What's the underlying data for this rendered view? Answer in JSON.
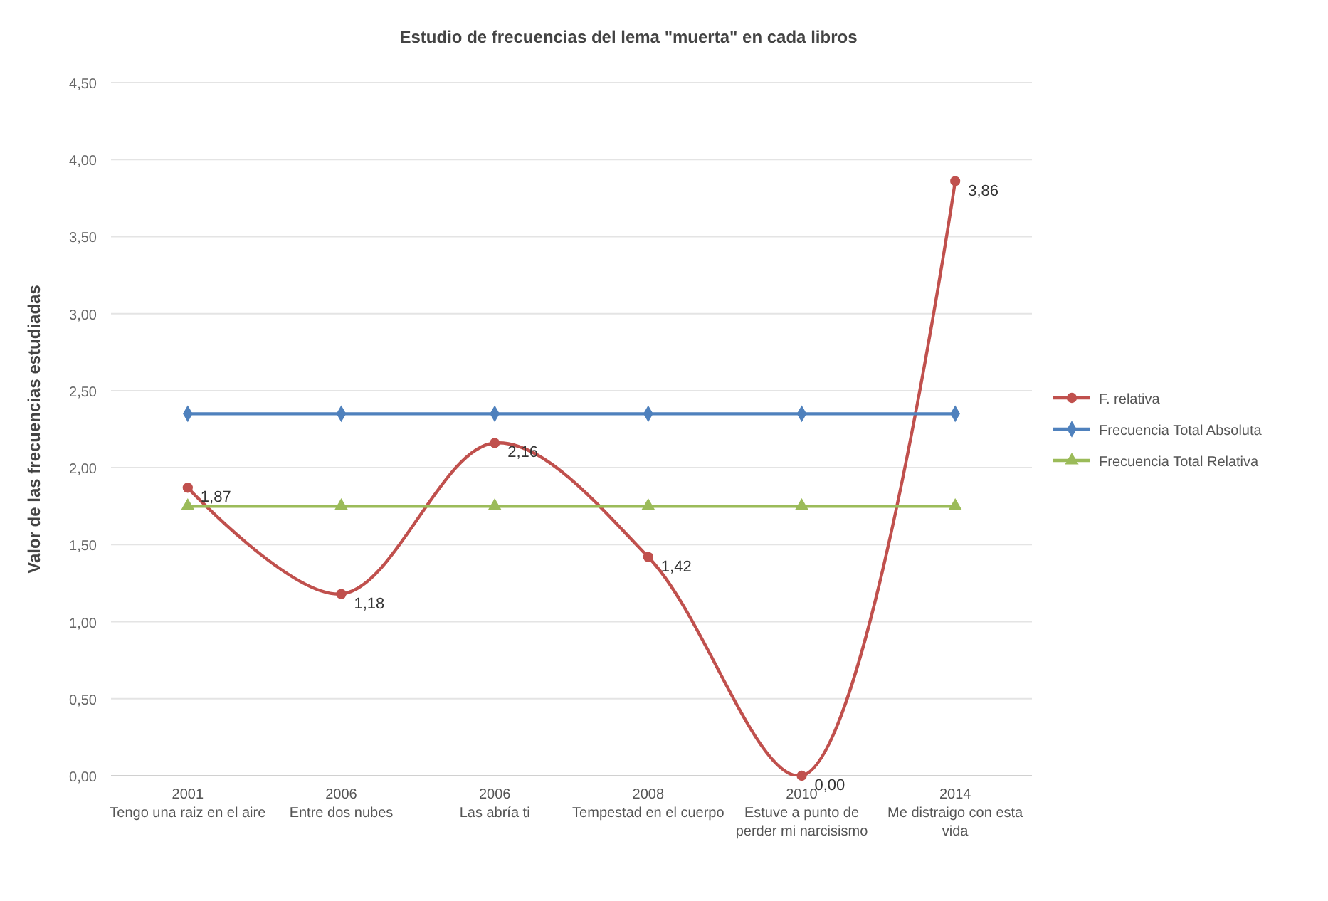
{
  "chart_data": {
    "type": "line",
    "title": "Estudio de frecuencias del lema \"muerta\" en cada libros",
    "ylabel": "Valor de las frecuencias estudiadas",
    "categories": [
      "2001\nTengo una raiz en el aire",
      "2006\nEntre dos nubes",
      "2006\nLas abría ti",
      "2008\nTempestad en el cuerpo",
      "2010\nEstuve a punto de\nperder mi narcisismo",
      "2014\nMe distraigo con esta\nvida"
    ],
    "series": [
      {
        "name": "F. relativa",
        "color": "#c0504d",
        "values": [
          1.87,
          1.18,
          2.16,
          1.42,
          0.0,
          3.86
        ],
        "value_labels": [
          "1,87",
          "1,18",
          "2,16",
          "1,42",
          "0,00",
          "3,86"
        ],
        "marker": "circle"
      },
      {
        "name": "Frecuencia Total Absoluta",
        "color": "#4f81bd",
        "values": [
          2.35,
          2.35,
          2.35,
          2.35,
          2.35,
          2.35
        ],
        "marker": "diamond"
      },
      {
        "name": "Frecuencia Total Relativa",
        "color": "#9bbb59",
        "values": [
          1.75,
          1.75,
          1.75,
          1.75,
          1.75,
          1.75
        ],
        "marker": "triangle"
      }
    ],
    "ylim": [
      0,
      4.5
    ],
    "yticks": [
      {
        "value": 0,
        "label": "0,00"
      },
      {
        "value": 0.5,
        "label": "0,50"
      },
      {
        "value": 1,
        "label": "1,00"
      },
      {
        "value": 1.5,
        "label": "1,50"
      },
      {
        "value": 2,
        "label": "2,00"
      },
      {
        "value": 2.5,
        "label": "2,50"
      },
      {
        "value": 3,
        "label": "3,00"
      },
      {
        "value": 3.5,
        "label": "3,50"
      },
      {
        "value": 4,
        "label": "4,00"
      },
      {
        "value": 4.5,
        "label": "4,50"
      }
    ],
    "grid": "y",
    "legend": "right"
  }
}
